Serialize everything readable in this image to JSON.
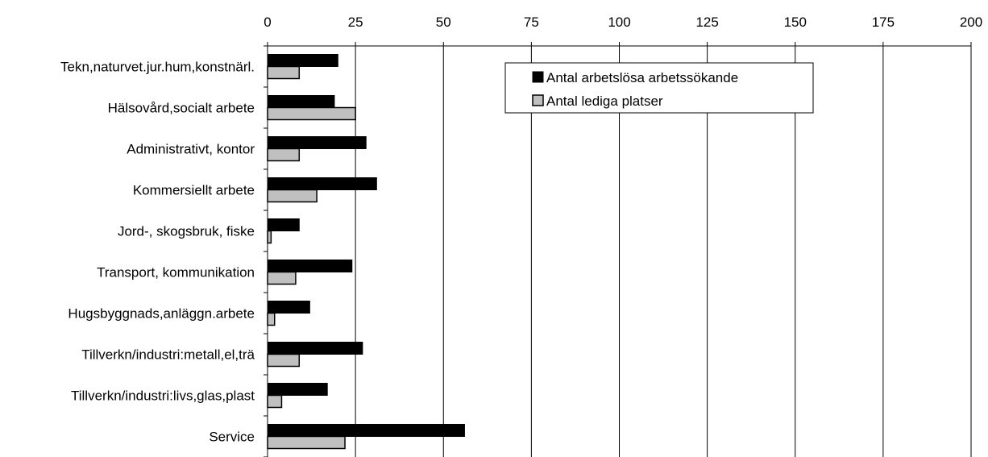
{
  "chart_data": {
    "type": "bar",
    "orientation": "horizontal",
    "categories": [
      "Tekn,naturvet.jur.hum,konstnärl.",
      "Hälsovård,socialt arbete",
      "Administrativt, kontor",
      "Kommersiellt arbete",
      "Jord-, skogsbruk, fiske",
      "Transport, kommunikation",
      "Hugsbyggnads,anläggn.arbete",
      "Tillverkn/industri:metall,el,trä",
      "Tillverkn/industri:livs,glas,plast",
      "Service"
    ],
    "series": [
      {
        "name": "Antal arbetslösa arbetssökande",
        "color": "#000000",
        "values": [
          20,
          19,
          28,
          31,
          9,
          24,
          12,
          27,
          17,
          56
        ]
      },
      {
        "name": "Antal lediga platser",
        "color": "#c0c0c0",
        "values": [
          9,
          25,
          9,
          14,
          1,
          8,
          2,
          9,
          4,
          22
        ]
      }
    ],
    "xlim": [
      0,
      200
    ],
    "x_ticks": [
      0,
      25,
      50,
      75,
      100,
      125,
      150,
      175,
      200
    ],
    "x_axis_position": "top",
    "grid": true,
    "legend_position": "top-center",
    "title": "",
    "xlabel": "",
    "ylabel": ""
  }
}
